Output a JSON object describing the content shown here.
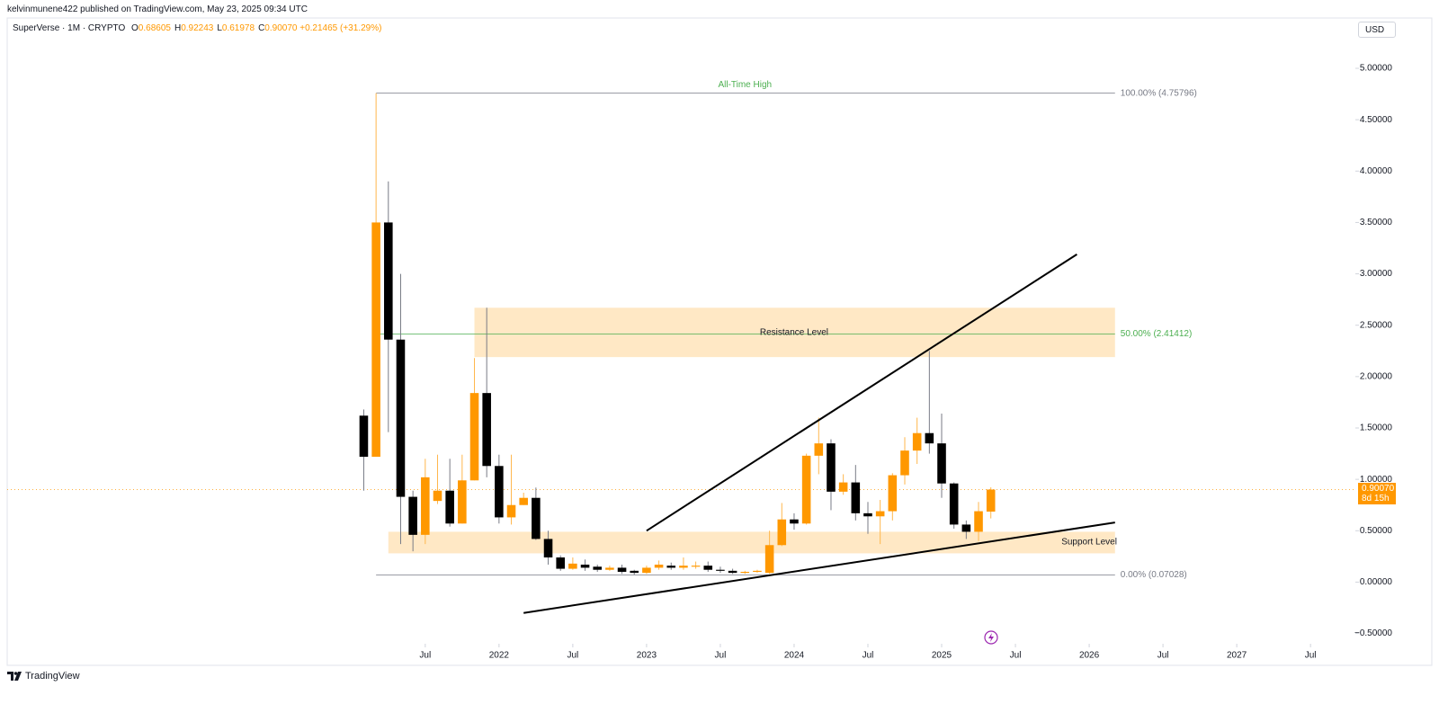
{
  "header": {
    "publisher": "kelvinmunene422 published on TradingView.com, May 23, 2025 09:34 UTC",
    "currency": "USD",
    "logo": "TradingView"
  },
  "chart_data": {
    "type": "candlestick",
    "symbol": "SuperVerse · 1M · CRYPTO",
    "ohlc_legend": [
      {
        "label": "O",
        "value": "0.68605"
      },
      {
        "label": "H",
        "value": "0.92243"
      },
      {
        "label": "L",
        "value": "0.61978"
      },
      {
        "label": "C",
        "value": "0.90070"
      }
    ],
    "change": "+0.21465 (+31.29%)",
    "x": [
      0,
      1,
      2,
      3,
      4,
      5,
      6,
      7,
      8,
      9,
      10,
      11,
      12,
      13,
      14,
      15,
      16,
      17,
      18,
      19,
      20,
      21,
      22,
      23,
      24,
      25,
      26,
      27,
      28,
      29,
      30,
      31,
      32,
      33,
      34,
      35,
      36,
      37,
      38,
      39,
      40,
      41,
      42,
      43,
      44,
      45,
      46,
      47,
      48,
      49,
      50,
      51
    ],
    "open": [
      1.62,
      1.22,
      3.5,
      2.36,
      0.83,
      0.46,
      0.79,
      0.89,
      0.57,
      0.99,
      1.84,
      1.13,
      0.63,
      0.75,
      0.82,
      0.42,
      0.24,
      0.13,
      0.17,
      0.15,
      0.12,
      0.14,
      0.11,
      0.09,
      0.14,
      0.16,
      0.14,
      0.15,
      0.16,
      0.12,
      0.11,
      0.09,
      0.1,
      0.09,
      0.36,
      0.61,
      0.57,
      1.23,
      1.35,
      0.88,
      0.97,
      0.67,
      0.64,
      0.69,
      1.04,
      1.28,
      1.45,
      1.35,
      0.96,
      0.56,
      0.49,
      0.68605
    ],
    "high": [
      1.68,
      4.75796,
      3.9,
      3.0,
      0.89,
      1.2,
      1.24,
      1.2,
      1.24,
      2.18,
      2.67,
      1.24,
      1.24,
      0.87,
      0.92,
      0.5,
      0.26,
      0.24,
      0.22,
      0.17,
      0.16,
      0.17,
      0.12,
      0.16,
      0.21,
      0.19,
      0.24,
      0.2,
      0.2,
      0.15,
      0.13,
      0.11,
      0.12,
      0.5,
      0.77,
      0.67,
      1.25,
      1.6,
      1.39,
      1.05,
      1.14,
      0.78,
      0.8,
      1.06,
      1.41,
      1.6,
      2.25,
      1.64,
      0.97,
      0.6,
      0.78,
      0.92243
    ],
    "low": [
      0.89,
      1.22,
      1.46,
      0.37,
      0.3,
      0.37,
      0.76,
      0.54,
      0.57,
      0.99,
      1.02,
      0.57,
      0.56,
      0.75,
      0.41,
      0.17,
      0.11,
      0.12,
      0.11,
      0.1,
      0.11,
      0.08,
      0.07028,
      0.08,
      0.12,
      0.12,
      0.12,
      0.13,
      0.1,
      0.09,
      0.08,
      0.08,
      0.09,
      0.08,
      0.35,
      0.51,
      0.56,
      1.05,
      0.7,
      0.85,
      0.6,
      0.47,
      0.37,
      0.6,
      0.95,
      1.15,
      1.25,
      0.82,
      0.52,
      0.42,
      0.4,
      0.61978
    ],
    "close": [
      1.22,
      3.5,
      2.36,
      0.83,
      0.46,
      1.02,
      0.89,
      0.57,
      0.99,
      1.84,
      1.13,
      0.63,
      0.75,
      0.82,
      0.42,
      0.24,
      0.13,
      0.18,
      0.14,
      0.12,
      0.14,
      0.1,
      0.09,
      0.14,
      0.17,
      0.14,
      0.16,
      0.16,
      0.12,
      0.11,
      0.09,
      0.1,
      0.11,
      0.36,
      0.61,
      0.57,
      1.23,
      1.35,
      0.88,
      0.97,
      0.67,
      0.64,
      0.69,
      1.04,
      1.28,
      1.45,
      1.35,
      0.96,
      0.56,
      0.49,
      0.69,
      0.9007
    ],
    "up_color": "#ff9800",
    "down_color": "#000000",
    "xlim": [
      -29,
      80.5
    ],
    "xticks": [
      {
        "value": 5,
        "label": "Jul"
      },
      {
        "value": 11,
        "label": "2022"
      },
      {
        "value": 17,
        "label": "Jul"
      },
      {
        "value": 23,
        "label": "2023"
      },
      {
        "value": 29,
        "label": "Jul"
      },
      {
        "value": 35,
        "label": "2024"
      },
      {
        "value": 41,
        "label": "Jul"
      },
      {
        "value": 47,
        "label": "2025"
      },
      {
        "value": 53,
        "label": "Jul"
      },
      {
        "value": 59,
        "label": "2026"
      },
      {
        "value": 65,
        "label": "Jul"
      },
      {
        "value": 71,
        "label": "2027"
      },
      {
        "value": 77,
        "label": "Jul"
      }
    ],
    "ylim": [
      -0.81,
      5.49
    ],
    "yticks": [
      {
        "value": 5,
        "label": "5.00000"
      },
      {
        "value": 4.5,
        "label": "4.50000"
      },
      {
        "value": 4,
        "label": "4.00000"
      },
      {
        "value": 3.5,
        "label": "3.50000"
      },
      {
        "value": 3,
        "label": "3.00000"
      },
      {
        "value": 2.5,
        "label": "2.50000"
      },
      {
        "value": 2,
        "label": "2.00000"
      },
      {
        "value": 1.5,
        "label": "1.50000"
      },
      {
        "value": 1,
        "label": "1.00000"
      },
      {
        "value": 0.5,
        "label": "0.50000"
      },
      {
        "value": 0,
        "label": "0.00000"
      },
      {
        "value": -0.5,
        "label": "−0.50000"
      }
    ],
    "last_price": {
      "value": 0.9007,
      "label": "0.90070",
      "countdown": "8d 15h"
    },
    "fib_x": [
      1,
      61.1
    ],
    "fib_levels": [
      {
        "value": 4.75796,
        "label": "100.00% (4.75796)",
        "color": "#787b86"
      },
      {
        "value": 2.41412,
        "label": "50.00% (2.41412)",
        "color": "#4caf50"
      },
      {
        "value": 0.07028,
        "label": "0.00% (0.07028)",
        "color": "#787b86"
      }
    ],
    "annotations": [
      {
        "text": "All-Time High",
        "x": 31,
        "y": 4.84,
        "color": "#4caf50"
      }
    ],
    "zones": [
      {
        "label": "Resistance Level",
        "x": [
          9,
          61.1
        ],
        "y": [
          2.19,
          2.67
        ],
        "label_x": 35,
        "label_y": 2.43
      },
      {
        "label": "Support Level",
        "x": [
          2,
          61.1
        ],
        "y": [
          0.28,
          0.49
        ],
        "label_x": 59,
        "label_y": 0.39
      }
    ],
    "trend_lines": [
      {
        "x": [
          23,
          58
        ],
        "y": [
          0.5,
          3.19
        ]
      },
      {
        "x": [
          13,
          61.1
        ],
        "y": [
          -0.3,
          0.58
        ]
      }
    ]
  }
}
